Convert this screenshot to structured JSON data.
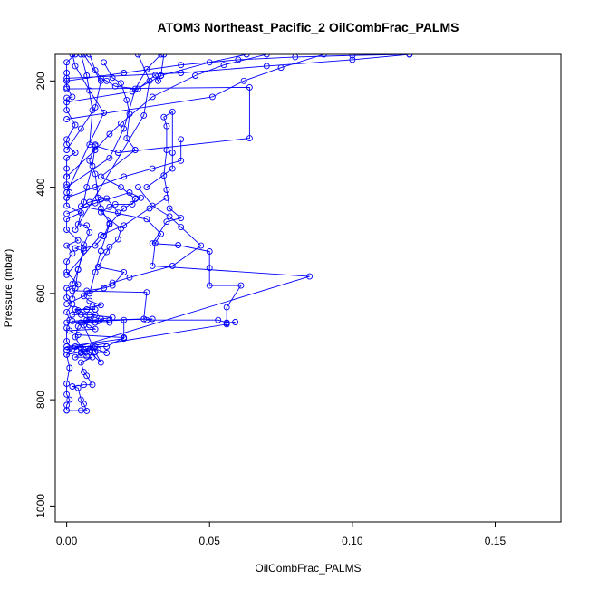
{
  "chart_data": {
    "type": "line",
    "title": "ATOM3 Northeast_Pacific_2 OilCombFrac_PALMS",
    "xlabel": "OilCombFrac_PALMS",
    "ylabel": "Pressure (mbar)",
    "xlim": [
      -0.004,
      0.173
    ],
    "ylim": [
      1030,
      150
    ],
    "y_reversed": true,
    "x_ticks": [
      {
        "value": 0,
        "label": "0.00"
      },
      {
        "value": 0.05,
        "label": "0.05"
      },
      {
        "value": 0.1,
        "label": "0.10"
      },
      {
        "value": 0.15,
        "label": "0.15"
      }
    ],
    "y_ticks": [
      {
        "value": 200,
        "label": "200"
      },
      {
        "value": 400,
        "label": "400"
      },
      {
        "value": 600,
        "label": "600"
      },
      {
        "value": 800,
        "label": "800"
      },
      {
        "value": 1000,
        "label": "1000"
      }
    ],
    "grid": false,
    "marker": "open-circle",
    "colors": {
      "series": "#0000ff",
      "axis": "#000000"
    },
    "series": [
      {
        "points": [
          [
            0.0,
            820
          ],
          [
            0.0,
            810
          ],
          [
            0.001,
            800
          ],
          [
            0.0,
            790
          ],
          [
            0.0,
            770
          ],
          [
            0.001,
            740
          ],
          [
            0.0,
            715
          ],
          [
            0.002,
            705
          ],
          [
            0.0,
            690
          ],
          [
            0.0,
            665
          ],
          [
            0.001,
            650
          ],
          [
            0.0,
            635
          ],
          [
            0.002,
            620
          ],
          [
            0.0,
            608
          ],
          [
            0.0,
            590
          ],
          [
            0.004,
            583
          ],
          [
            0.0,
            560
          ],
          [
            0.0,
            540
          ],
          [
            0.002,
            525
          ],
          [
            0.0,
            510
          ],
          [
            0.004,
            500
          ],
          [
            0.0,
            480
          ],
          [
            0.0,
            460
          ],
          [
            0.005,
            448
          ],
          [
            0.0,
            435
          ],
          [
            0.0,
            420
          ],
          [
            0.001,
            410
          ],
          [
            0.0,
            395
          ],
          [
            0.0,
            380
          ],
          [
            0.0,
            365
          ],
          [
            0.0,
            345
          ],
          [
            0.003,
            335
          ],
          [
            0.0,
            320
          ],
          [
            0.0,
            310
          ],
          [
            0.003,
            283
          ],
          [
            0.0,
            255
          ],
          [
            0.0,
            232
          ],
          [
            0.002,
            230
          ],
          [
            0.0,
            212
          ],
          [
            0.0,
            200
          ],
          [
            0.0,
            185
          ],
          [
            0.0,
            165
          ],
          [
            0.003,
            150
          ]
        ]
      },
      {
        "points": [
          [
            0.0,
            820
          ],
          [
            0.005,
            820
          ],
          [
            0.007,
            821
          ],
          [
            0.006,
            808
          ],
          [
            0.005,
            800
          ],
          [
            0.004,
            778
          ],
          [
            0.002,
            775
          ],
          [
            0.006,
            772
          ],
          [
            0.009,
            772
          ],
          [
            0.007,
            755
          ],
          [
            0.006,
            748
          ],
          [
            0.005,
            730
          ],
          [
            0.009,
            720
          ],
          [
            0.003,
            720
          ],
          [
            0.005,
            712
          ],
          [
            0.007,
            710
          ],
          [
            0.01,
            710
          ],
          [
            0.014,
            712
          ],
          [
            0.011,
            706
          ],
          [
            0.006,
            706
          ],
          [
            0.01,
            700
          ],
          [
            0.014,
            700
          ],
          [
            0.02,
            683
          ],
          [
            0.004,
            678
          ],
          [
            0.001,
            670
          ],
          [
            0.01,
            667
          ],
          [
            0.008,
            660
          ],
          [
            0.005,
            655
          ],
          [
            0.01,
            655
          ],
          [
            0.015,
            655
          ],
          [
            0.012,
            648
          ],
          [
            0.016,
            645
          ],
          [
            0.008,
            640
          ],
          [
            0.004,
            632
          ],
          [
            0.009,
            625
          ],
          [
            0.012,
            622
          ],
          [
            0.008,
            614
          ],
          [
            0.006,
            605
          ],
          [
            0.007,
            595
          ],
          [
            0.013,
            590
          ],
          [
            0.016,
            585
          ],
          [
            0.02,
            560
          ],
          [
            0.011,
            550
          ],
          [
            0.014,
            522
          ],
          [
            0.015,
            512
          ],
          [
            0.018,
            498
          ],
          [
            0.019,
            478
          ],
          [
            0.012,
            447
          ],
          [
            0.015,
            437
          ],
          [
            0.017,
            432
          ],
          [
            0.023,
            432
          ],
          [
            0.024,
            422
          ],
          [
            0.019,
            400
          ],
          [
            0.012,
            380
          ],
          [
            0.024,
            330
          ],
          [
            0.021,
            308
          ],
          [
            0.022,
            262
          ],
          [
            0.021,
            236
          ],
          [
            0.019,
            204
          ],
          [
            0.016,
            194
          ],
          [
            0.013,
            165
          ]
        ]
      },
      {
        "points": [
          [
            0.002,
            640
          ],
          [
            0.01,
            640
          ],
          [
            0.008,
            650
          ],
          [
            0.005,
            655
          ],
          [
            0.004,
            662
          ],
          [
            0.003,
            682
          ],
          [
            0.005,
            702
          ],
          [
            0.008,
            710
          ],
          [
            0.012,
            730
          ],
          [
            0.01,
            710
          ],
          [
            0.006,
            660
          ],
          [
            0.008,
            650
          ],
          [
            0.005,
            640
          ],
          [
            0.003,
            630
          ],
          [
            0.007,
            630
          ],
          [
            0.01,
            630
          ]
        ]
      },
      {
        "points": [
          [
            0.0,
            715
          ],
          [
            0.005,
            710
          ],
          [
            0.008,
            706
          ],
          [
            0.009,
            700
          ],
          [
            0.003,
            700
          ],
          [
            0.007,
            718
          ]
        ]
      },
      {
        "points": [
          [
            0.056,
            656
          ],
          [
            0.059,
            654
          ],
          [
            0.056,
            655
          ],
          [
            0.053,
            650
          ],
          [
            0.028,
            650
          ],
          [
            0.03,
            648
          ],
          [
            0.002,
            652
          ],
          [
            0.007,
            650
          ],
          [
            0.01,
            650
          ],
          [
            0.011,
            652
          ]
        ]
      },
      {
        "points": [
          [
            0.0,
            706
          ],
          [
            0.056,
            658
          ],
          [
            0.056,
            626
          ],
          [
            0.061,
            585
          ],
          [
            0.05,
            585
          ],
          [
            0.05,
            552
          ],
          [
            0.05,
            521
          ],
          [
            0.039,
            509
          ],
          [
            0.03,
            506
          ],
          [
            0.035,
            465
          ],
          [
            0.04,
            458
          ],
          [
            0.036,
            440
          ],
          [
            0.035,
            405
          ],
          [
            0.034,
            378
          ],
          [
            0.035,
            330
          ],
          [
            0.035,
            285
          ],
          [
            0.034,
            268
          ],
          [
            0.037,
            258
          ],
          [
            0.037,
            335
          ],
          [
            0.037,
            365
          ],
          [
            0.028,
            400
          ]
        ]
      },
      {
        "points": [
          [
            0.0,
            707
          ],
          [
            0.085,
            568
          ],
          [
            0.03,
            548
          ],
          [
            0.031,
            505
          ],
          [
            0.033,
            488
          ],
          [
            0.028,
            460
          ],
          [
            0.005,
            436
          ],
          [
            0.008,
            428
          ],
          [
            0.012,
            423
          ],
          [
            0.014,
            421
          ],
          [
            0.018,
            448
          ]
        ]
      },
      {
        "points": [
          [
            0.0,
            215
          ],
          [
            0.064,
            212
          ],
          [
            0.064,
            308
          ],
          [
            0.018,
            335
          ],
          [
            0.01,
            322
          ],
          [
            0.008,
            350
          ],
          [
            0.01,
            375
          ],
          [
            0.011,
            420
          ],
          [
            0.012,
            440
          ],
          [
            0.015,
            468
          ],
          [
            0.013,
            492
          ],
          [
            0.01,
            510
          ],
          [
            0.006,
            515
          ],
          [
            0.004,
            555
          ],
          [
            0.003,
            590
          ],
          [
            0.002,
            610
          ]
        ]
      },
      {
        "points": [
          [
            0.002,
            595
          ],
          [
            0.028,
            598
          ],
          [
            0.027,
            648
          ],
          [
            0.015,
            650
          ]
        ]
      },
      {
        "points": [
          [
            0.0,
            655
          ],
          [
            0.02,
            650
          ],
          [
            0.02,
            685
          ],
          [
            0.0,
            700
          ]
        ]
      },
      {
        "points": [
          [
            0.0,
            410
          ],
          [
            0.013,
            260
          ],
          [
            0.008,
            218
          ],
          [
            0.003,
            172
          ],
          [
            0.002,
            150
          ]
        ]
      },
      {
        "points": [
          [
            0.008,
            150
          ],
          [
            0.01,
            180
          ],
          [
            0.012,
            195
          ],
          [
            0.014,
            200
          ],
          [
            0.017,
            210
          ],
          [
            0.025,
            215
          ],
          [
            0.031,
            189
          ],
          [
            0.032,
            200
          ],
          [
            0.033,
            190
          ],
          [
            0.034,
            150
          ]
        ]
      },
      {
        "points": [
          [
            0.005,
            150
          ],
          [
            0.007,
            190
          ],
          [
            0.009,
            255
          ],
          [
            0.008,
            320
          ],
          [
            0.01,
            320
          ],
          [
            0.009,
            360
          ],
          [
            0.007,
            400
          ],
          [
            0.006,
            428
          ],
          [
            0.004,
            470
          ],
          [
            0.007,
            472
          ],
          [
            0.008,
            485
          ],
          [
            0.006,
            508
          ],
          [
            0.003,
            515
          ],
          [
            0.006,
            520
          ],
          [
            0.004,
            555
          ],
          [
            0.002,
            582
          ]
        ]
      },
      {
        "points": [
          [
            0.003,
            480
          ],
          [
            0.027,
            265
          ],
          [
            0.029,
            200
          ],
          [
            0.025,
            150
          ]
        ]
      },
      {
        "points": [
          [
            0.0,
            565
          ],
          [
            0.012,
            490
          ],
          [
            0.02,
            472
          ],
          [
            0.029,
            440
          ],
          [
            0.035,
            420
          ]
        ]
      },
      {
        "points": [
          [
            0.0,
            620
          ],
          [
            0.016,
            580
          ],
          [
            0.022,
            570
          ],
          [
            0.037,
            548
          ],
          [
            0.047,
            510
          ],
          [
            0.04,
            475
          ],
          [
            0.036,
            455
          ],
          [
            0.03,
            435
          ],
          [
            0.025,
            400
          ]
        ]
      },
      {
        "points": [
          [
            0.0,
            240
          ],
          [
            0.023,
            220
          ],
          [
            0.033,
            190
          ],
          [
            0.05,
            165
          ],
          [
            0.063,
            150
          ]
        ]
      },
      {
        "points": [
          [
            0.0,
            272
          ],
          [
            0.051,
            230
          ],
          [
            0.062,
            200
          ],
          [
            0.075,
            175
          ],
          [
            0.09,
            150
          ]
        ]
      },
      {
        "points": [
          [
            0.0,
            330
          ],
          [
            0.005,
            290
          ],
          [
            0.01,
            250
          ],
          [
            0.012,
            200
          ],
          [
            0.006,
            150
          ]
        ]
      },
      {
        "points": [
          [
            0.0,
            400
          ],
          [
            0.015,
            345
          ],
          [
            0.02,
            290
          ],
          [
            0.024,
            215
          ],
          [
            0.028,
            178
          ],
          [
            0.033,
            150
          ]
        ]
      },
      {
        "points": [
          [
            0.0,
            380
          ],
          [
            0.01,
            330
          ],
          [
            0.015,
            300
          ],
          [
            0.019,
            280
          ],
          [
            0.03,
            230
          ],
          [
            0.045,
            190
          ],
          [
            0.055,
            170
          ],
          [
            0.07,
            150
          ]
        ]
      },
      {
        "points": [
          [
            0.0,
            200
          ],
          [
            0.02,
            185
          ],
          [
            0.04,
            170
          ],
          [
            0.06,
            160
          ],
          [
            0.08,
            155
          ],
          [
            0.1,
            152
          ],
          [
            0.12,
            150
          ]
        ]
      },
      {
        "points": [
          [
            0.0,
            195
          ],
          [
            0.04,
            185
          ],
          [
            0.07,
            172
          ],
          [
            0.1,
            160
          ],
          [
            0.12,
            150
          ]
        ]
      },
      {
        "points": [
          [
            0.0,
            420
          ],
          [
            0.01,
            400
          ],
          [
            0.02,
            380
          ],
          [
            0.03,
            365
          ],
          [
            0.04,
            350
          ],
          [
            0.04,
            310
          ]
        ]
      },
      {
        "points": [
          [
            0.0,
            450
          ],
          [
            0.01,
            430
          ],
          [
            0.022,
            410
          ],
          [
            0.026,
            420
          ],
          [
            0.02,
            440
          ],
          [
            0.015,
            470
          ],
          [
            0.012,
            520
          ],
          [
            0.01,
            560
          ],
          [
            0.008,
            600
          ]
        ]
      }
    ]
  }
}
